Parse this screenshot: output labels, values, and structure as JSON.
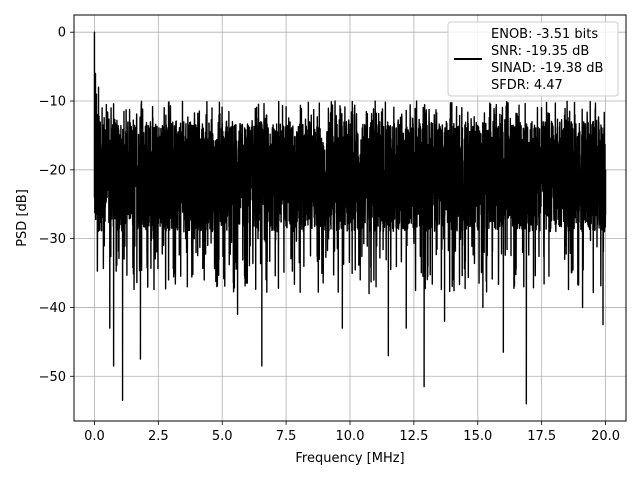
{
  "chart_data": {
    "type": "line",
    "title": "",
    "xlabel": "Frequency [MHz]",
    "ylabel": "PSD [dB]",
    "xlim": [
      -0.8,
      20.8
    ],
    "ylim": [
      -56.5,
      2.5
    ],
    "xticks": [
      0.0,
      2.5,
      5.0,
      7.5,
      10.0,
      12.5,
      15.0,
      17.5,
      20.0
    ],
    "xtick_labels": [
      "0.0",
      "2.5",
      "5.0",
      "7.5",
      "10.0",
      "12.5",
      "15.0",
      "17.5",
      "20.0"
    ],
    "yticks": [
      0,
      -10,
      -20,
      -30,
      -40,
      -50
    ],
    "ytick_labels": [
      "0",
      "−10",
      "−20",
      "−30",
      "−40",
      "−50"
    ],
    "grid": true,
    "legend_position": "top-right",
    "series": [
      {
        "color": "#000000",
        "description": "noise-like PSD trace, dense random fluctuations roughly between -10 and -35 dB",
        "points": [
          [
            0.0,
            -24
          ],
          [
            0.0,
            0
          ],
          [
            0.04,
            -6
          ],
          [
            0.08,
            -9
          ],
          [
            0.12,
            -12
          ],
          [
            0.16,
            -8
          ],
          [
            0.2,
            -20
          ],
          [
            0.25,
            -27
          ],
          [
            0.3,
            -14
          ],
          [
            0.35,
            -34
          ],
          [
            0.45,
            -16
          ],
          [
            0.55,
            -22
          ],
          [
            0.6,
            -43
          ],
          [
            0.7,
            -18
          ],
          [
            0.75,
            -48.5
          ],
          [
            0.85,
            -15
          ],
          [
            1.0,
            -28
          ],
          [
            1.1,
            -53.5
          ],
          [
            1.2,
            -17
          ],
          [
            1.4,
            -26
          ],
          [
            1.6,
            -20
          ],
          [
            1.8,
            -47.5
          ],
          [
            2.0,
            -16
          ],
          [
            2.3,
            -30
          ],
          [
            2.6,
            -14
          ],
          [
            2.9,
            -36
          ],
          [
            3.2,
            -18
          ],
          [
            3.5,
            -29
          ],
          [
            3.9,
            -16
          ],
          [
            4.3,
            -33
          ],
          [
            4.6,
            -11
          ],
          [
            5.0,
            -28
          ],
          [
            5.4,
            -13
          ],
          [
            5.6,
            -41
          ],
          [
            6.0,
            -17
          ],
          [
            6.4,
            -30
          ],
          [
            6.55,
            -48.5
          ],
          [
            6.8,
            -14
          ],
          [
            7.2,
            -34
          ],
          [
            7.6,
            -16
          ],
          [
            8.0,
            -27
          ],
          [
            8.4,
            -13
          ],
          [
            8.8,
            -33
          ],
          [
            9.2,
            -19
          ],
          [
            9.7,
            -43
          ],
          [
            10.1,
            -11
          ],
          [
            10.4,
            -36
          ],
          [
            10.8,
            -17
          ],
          [
            11.2,
            -28
          ],
          [
            11.5,
            -47
          ],
          [
            11.8,
            -14
          ],
          [
            12.2,
            -43
          ],
          [
            12.6,
            -19
          ],
          [
            12.9,
            -51.5
          ],
          [
            13.3,
            -12
          ],
          [
            13.7,
            -42
          ],
          [
            14.0,
            -15
          ],
          [
            14.4,
            -31
          ],
          [
            14.8,
            -17
          ],
          [
            15.2,
            -40
          ],
          [
            15.6,
            -13
          ],
          [
            16.0,
            -46.5
          ],
          [
            16.3,
            -16
          ],
          [
            16.8,
            -37
          ],
          [
            16.9,
            -54
          ],
          [
            17.2,
            -14
          ],
          [
            17.6,
            -30
          ],
          [
            18.0,
            -18
          ],
          [
            18.4,
            -33
          ],
          [
            18.8,
            -12
          ],
          [
            19.1,
            -40
          ],
          [
            19.5,
            -16
          ],
          [
            19.9,
            -42.5
          ],
          [
            20.0,
            -20
          ]
        ]
      }
    ],
    "legend": {
      "entries": [
        "ENOB: -3.51 bits",
        "SNR: -19.35 dB",
        "SINAD: -19.38 dB",
        "SFDR: 4.47"
      ]
    }
  }
}
